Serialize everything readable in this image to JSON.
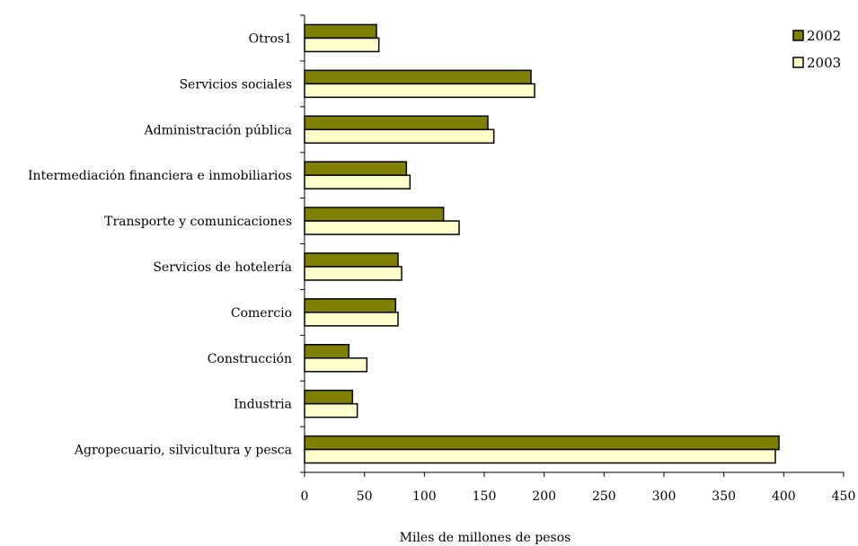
{
  "chart_data": {
    "type": "bar",
    "orientation": "horizontal",
    "title": "",
    "xlabel": "Miles de millones de pesos",
    "ylabel": "",
    "xlim": [
      0,
      450
    ],
    "xticks": [
      "0",
      "50",
      "100",
      "150",
      "200",
      "250",
      "300",
      "350",
      "400",
      "450"
    ],
    "grid": false,
    "legend_position": "top-right",
    "categories": [
      "Otros1",
      "Servicios sociales",
      "Administración pública",
      "Intermediación financiera e inmobiliarios",
      "Transporte y comunicaciones",
      "Servicios de hotelería",
      "Comercio",
      "Construcción",
      "Industria",
      "Agropecuario, silvicultura y pesca"
    ],
    "series": [
      {
        "name": "2002",
        "color": "#808000",
        "values": [
          60,
          189,
          153,
          85,
          116,
          78,
          76,
          37,
          40,
          396
        ]
      },
      {
        "name": "2003",
        "color": "#FFFFCC",
        "values": [
          62,
          192,
          158,
          88,
          129,
          81,
          78,
          52,
          44,
          393
        ]
      }
    ]
  }
}
